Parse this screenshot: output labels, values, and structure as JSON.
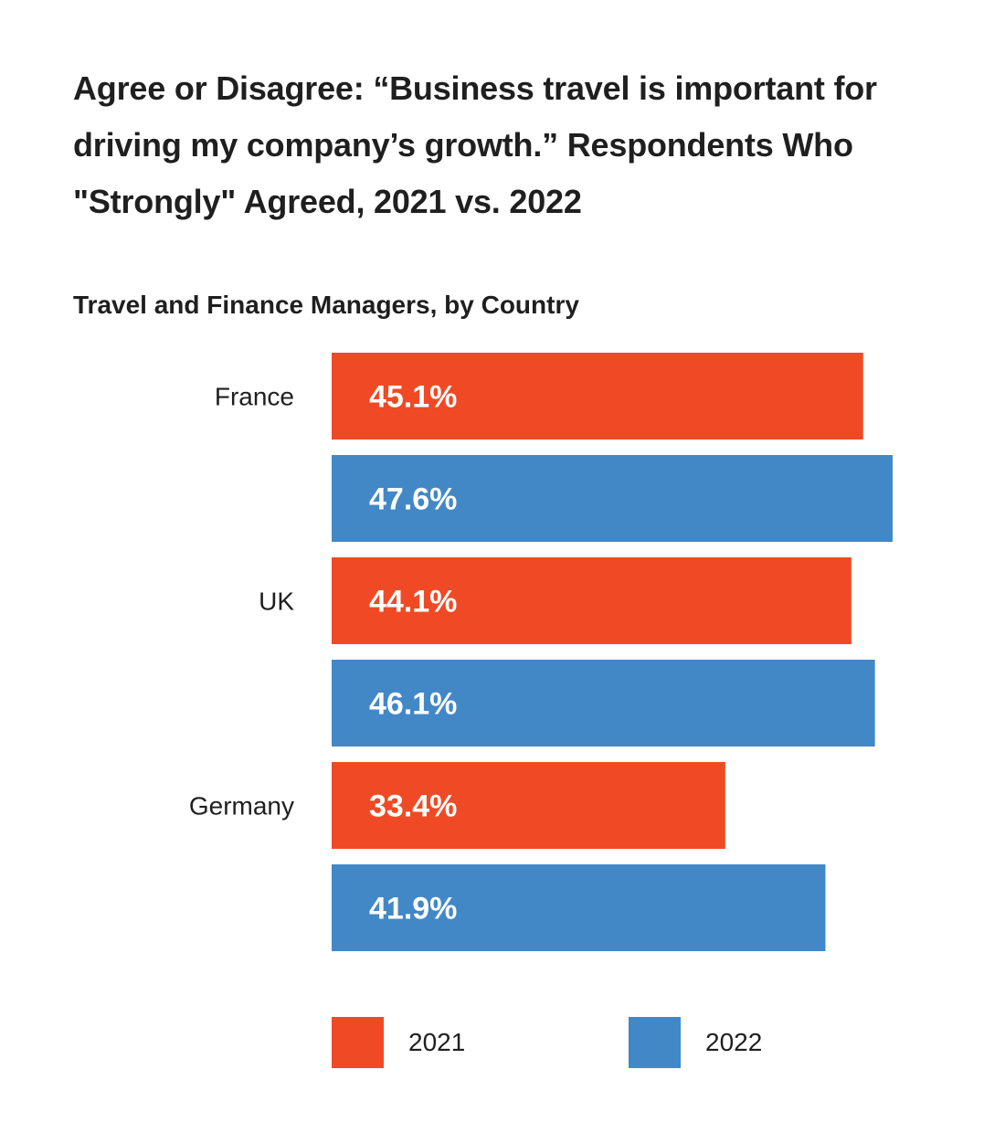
{
  "chart_data": {
    "type": "bar",
    "orientation": "horizontal",
    "title": "Agree or Disagree: “Business travel is important for driving my company’s growth.” Respondents Who \"Strongly\" Agreed, 2021 vs. 2022",
    "subtitle": "Travel and Finance Managers, by Country",
    "categories": [
      "France",
      "UK",
      "Germany"
    ],
    "series": [
      {
        "name": "2021",
        "values": [
          45.1,
          44.1,
          33.4
        ],
        "labels": [
          "45.1%",
          "44.1%",
          "33.4%"
        ],
        "color": "#ef4a25"
      },
      {
        "name": "2022",
        "values": [
          47.6,
          46.1,
          41.9
        ],
        "labels": [
          "47.6%",
          "46.1%",
          "41.9%"
        ],
        "color": "#4288c7"
      }
    ],
    "xlim": [
      0,
      47.6
    ],
    "grid": false,
    "legend_position": "bottom"
  }
}
